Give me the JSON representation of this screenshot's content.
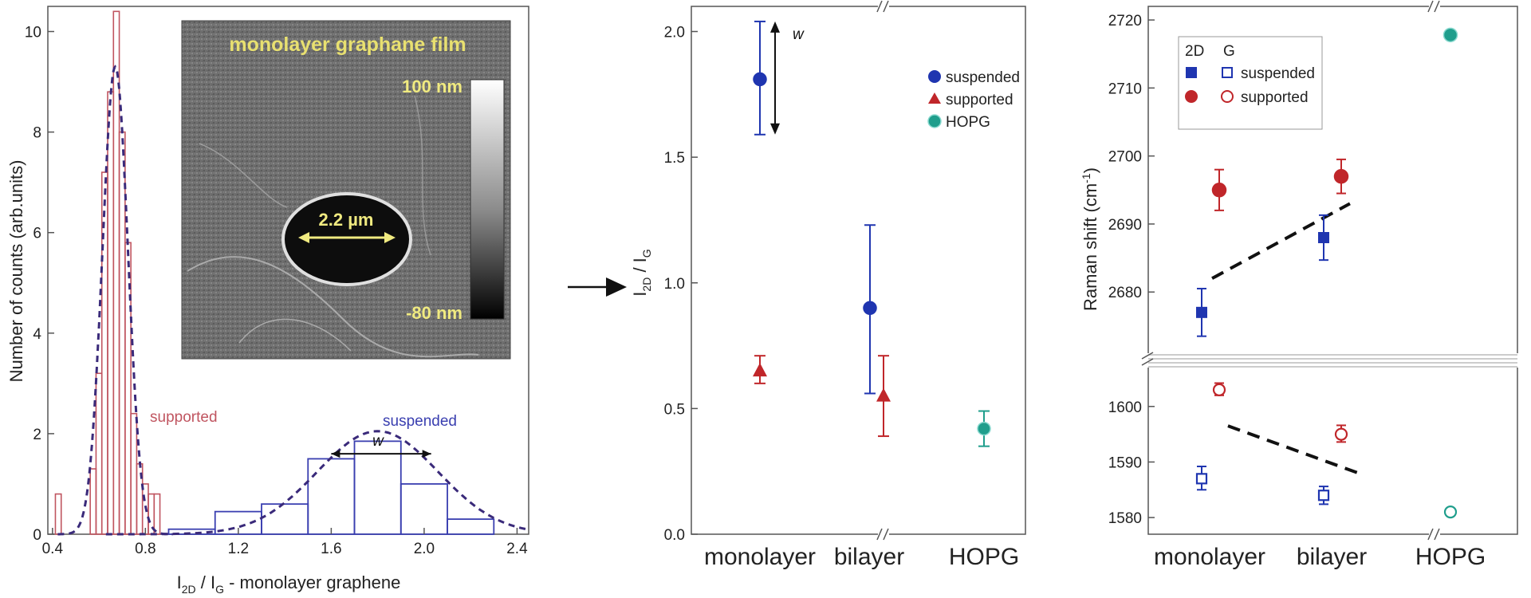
{
  "colors": {
    "suspended": "#1f35b0",
    "supported": "#c0262a",
    "hopg": "#1f9e8c",
    "hist_supported": "#c05560",
    "hist_suspended": "#3a3fb0",
    "fit_curve": "#3a2a7a",
    "axis": "#555555",
    "inset_text": "#e8e070"
  },
  "chart_data": [
    {
      "type": "bar",
      "id": "histogram",
      "xlabel_main": "I",
      "xlabel_sub1": "2D",
      "xlabel_mid": " / I",
      "xlabel_sub2": "G",
      "xlabel_tail": " - monolayer graphene",
      "ylabel": "Number of counts (arb.units)",
      "xlim": [
        0.38,
        2.45
      ],
      "ylim": [
        0,
        10.5
      ],
      "xticks": [
        0.4,
        0.8,
        1.2,
        1.6,
        2.0,
        2.4
      ],
      "xtick_labels": [
        "0.4",
        "0.8",
        "1.2",
        "1.6",
        "2.0",
        "2.4"
      ],
      "yticks": [
        0,
        2,
        4,
        6,
        8,
        10
      ],
      "ytick_labels": [
        "0",
        "2",
        "4",
        "6",
        "8",
        "10"
      ],
      "series": [
        {
          "name": "supported",
          "bin_width": 0.025,
          "bins": [
            {
              "x": 0.425,
              "count": 0.8
            },
            {
              "x": 0.575,
              "count": 1.3
            },
            {
              "x": 0.6,
              "count": 3.2
            },
            {
              "x": 0.625,
              "count": 7.2
            },
            {
              "x": 0.65,
              "count": 8.8
            },
            {
              "x": 0.675,
              "count": 10.4
            },
            {
              "x": 0.7,
              "count": 8.0
            },
            {
              "x": 0.725,
              "count": 5.8
            },
            {
              "x": 0.75,
              "count": 2.4
            },
            {
              "x": 0.775,
              "count": 1.4
            },
            {
              "x": 0.8,
              "count": 1.0
            },
            {
              "x": 0.825,
              "count": 0.8
            },
            {
              "x": 0.85,
              "count": 0.8
            }
          ],
          "fit": {
            "mu": 0.67,
            "sigma": 0.055,
            "amp": 9.3
          }
        },
        {
          "name": "suspended",
          "bin_width": 0.2,
          "bins": [
            {
              "x": 1.0,
              "count": 0.1
            },
            {
              "x": 1.2,
              "count": 0.45
            },
            {
              "x": 1.4,
              "count": 0.6
            },
            {
              "x": 1.6,
              "count": 1.5
            },
            {
              "x": 1.8,
              "count": 1.85
            },
            {
              "x": 2.0,
              "count": 1.0
            },
            {
              "x": 2.2,
              "count": 0.3
            }
          ],
          "fit": {
            "mu": 1.8,
            "sigma": 0.26,
            "amp": 2.05
          }
        }
      ],
      "annotations": {
        "supported_label": "supported",
        "suspended_label": "suspended",
        "width_label": "w",
        "width_arrow": {
          "from": 1.6,
          "to": 2.03,
          "y": 1.6
        }
      },
      "inset": {
        "title": "monolayer graphane film",
        "scale_top": "100 nm",
        "scale_bottom": "-80 nm",
        "hole_label": "2.2 µm"
      }
    },
    {
      "type": "scatter",
      "id": "ratio",
      "ylabel_main": "I",
      "ylabel_sub1": "2D",
      "ylabel_mid": " / I",
      "ylabel_sub2": "G",
      "categories": [
        "monolayer",
        "bilayer",
        "HOPG"
      ],
      "ylim": [
        0.0,
        2.1
      ],
      "yticks": [
        0.0,
        0.5,
        1.0,
        1.5,
        2.0
      ],
      "ytick_labels": [
        "0.0",
        "0.5",
        "1.0",
        "1.5",
        "2.0"
      ],
      "series": [
        {
          "name": "suspended",
          "marker": "circle",
          "points": [
            {
              "category": "monolayer",
              "y": 1.81,
              "ylo": 1.59,
              "yhi": 2.04
            },
            {
              "category": "bilayer",
              "y": 0.9,
              "ylo": 0.56,
              "yhi": 1.23
            }
          ]
        },
        {
          "name": "supported",
          "marker": "triangle",
          "points": [
            {
              "category": "monolayer",
              "y": 0.65,
              "ylo": 0.6,
              "yhi": 0.71
            },
            {
              "category": "bilayer",
              "y": 0.55,
              "ylo": 0.39,
              "yhi": 0.71
            }
          ]
        },
        {
          "name": "HOPG",
          "marker": "circle",
          "points": [
            {
              "category": "HOPG",
              "y": 0.42,
              "ylo": 0.35,
              "yhi": 0.49
            }
          ]
        }
      ],
      "annotations": {
        "width_label": "w",
        "width_arrow": {
          "from": 1.59,
          "to": 2.04
        }
      },
      "legend": {
        "placement": "top-right",
        "entries": [
          "suspended",
          "supported",
          "HOPG"
        ]
      }
    },
    {
      "type": "scatter",
      "id": "raman",
      "ylabel_main": "Raman shift (cm",
      "ylabel_sup": "-1",
      "ylabel_tail": ")",
      "categories": [
        "monolayer",
        "bilayer",
        "HOPG"
      ],
      "broken_axis": true,
      "upper": {
        "ylim": [
          2671,
          2722
        ],
        "yticks": [
          2680,
          2690,
          2700,
          2710,
          2720
        ],
        "ytick_labels": [
          "2680",
          "2690",
          "2700",
          "2710",
          "2720"
        ]
      },
      "lower": {
        "ylim": [
          1577,
          1607
        ],
        "yticks": [
          1580,
          1590,
          1600
        ],
        "ytick_labels": [
          "1580",
          "1590",
          "1600"
        ]
      },
      "series": [
        {
          "name": "2D suspended",
          "panel": "upper",
          "marker": "square",
          "filled": true,
          "color": "suspended",
          "points": [
            {
              "category": "monolayer",
              "y": 2677,
              "ylo": 2673.5,
              "yhi": 2680.5
            },
            {
              "category": "bilayer",
              "y": 2688,
              "ylo": 2684.7,
              "yhi": 2691.3
            }
          ]
        },
        {
          "name": "2D supported",
          "panel": "upper",
          "marker": "circle",
          "filled": true,
          "color": "supported",
          "points": [
            {
              "category": "monolayer",
              "y": 2695,
              "ylo": 2692,
              "yhi": 2698
            },
            {
              "category": "bilayer",
              "y": 2697,
              "ylo": 2694.5,
              "yhi": 2699.5
            }
          ]
        },
        {
          "name": "2D HOPG",
          "panel": "upper",
          "marker": "circle",
          "filled": true,
          "color": "hopg",
          "points": [
            {
              "category": "HOPG",
              "y": 2717.8,
              "ylo": 2717.8,
              "yhi": 2717.8
            }
          ]
        },
        {
          "name": "G suspended",
          "panel": "lower",
          "marker": "square",
          "filled": false,
          "color": "suspended",
          "points": [
            {
              "category": "monolayer",
              "y": 1587,
              "ylo": 1585,
              "yhi": 1589.2
            },
            {
              "category": "bilayer",
              "y": 1584,
              "ylo": 1582.4,
              "yhi": 1585.6
            }
          ]
        },
        {
          "name": "G supported",
          "panel": "lower",
          "marker": "circle",
          "filled": false,
          "color": "supported",
          "points": [
            {
              "category": "monolayer",
              "y": 1603,
              "ylo": 1602,
              "yhi": 1604.2
            },
            {
              "category": "bilayer",
              "y": 1595,
              "ylo": 1593.6,
              "yhi": 1596.6
            }
          ]
        },
        {
          "name": "G HOPG",
          "panel": "lower",
          "marker": "circle",
          "filled": false,
          "color": "hopg",
          "points": [
            {
              "category": "HOPG",
              "y": 1581,
              "ylo": 1581,
              "yhi": 1581
            }
          ]
        }
      ],
      "dashed_lines": [
        {
          "panel": "upper",
          "from": {
            "category_pos": 0.02,
            "y": 2682
          },
          "to": {
            "category_pos": 1.15,
            "y": 2693
          }
        },
        {
          "panel": "lower",
          "from": {
            "category_pos": 0.15,
            "y": 1596.5
          },
          "to": {
            "category_pos": 1.22,
            "y": 1588
          }
        }
      ],
      "legend": {
        "placement": "top-left",
        "header_2d": "2D",
        "header_g": "G",
        "entries": [
          "suspended",
          "supported"
        ]
      }
    }
  ]
}
